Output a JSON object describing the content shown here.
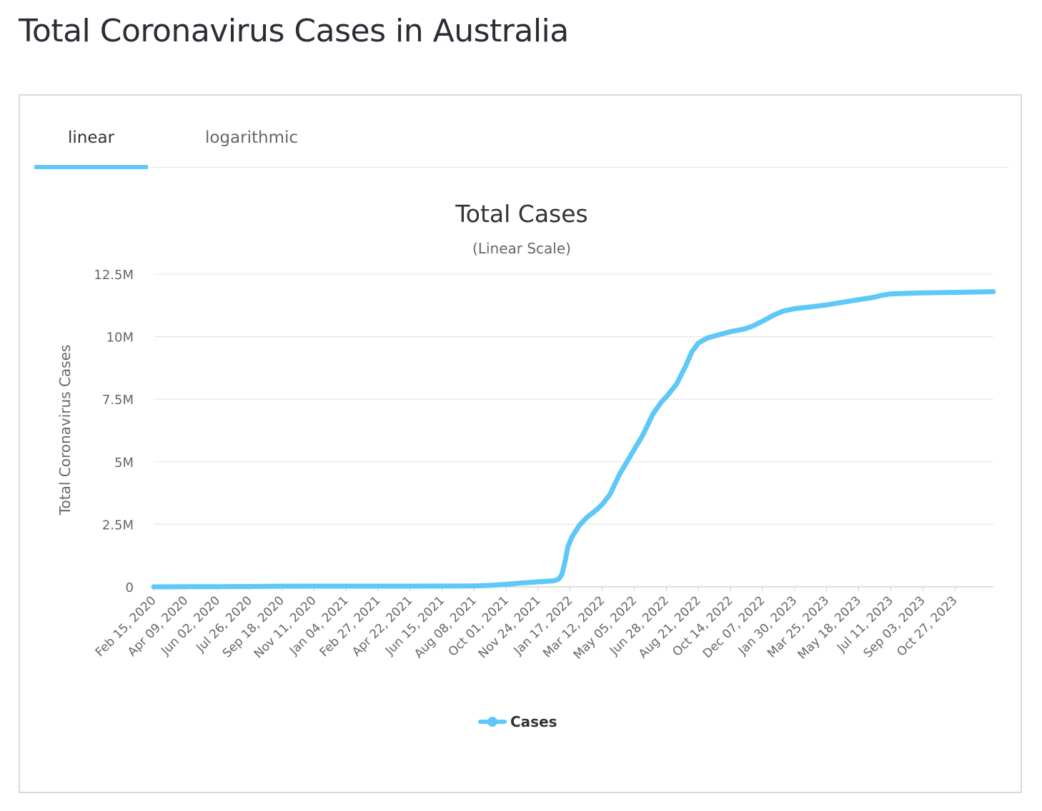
{
  "page": {
    "title": "Total Coronavirus Cases in Australia"
  },
  "tabs": [
    {
      "label": "linear",
      "active": true
    },
    {
      "label": "logarithmic",
      "active": false
    }
  ],
  "colors": {
    "series": "#5ec8f8",
    "grid": "#e6e6e6",
    "text": "#333333",
    "muted": "#666666"
  },
  "chart_data": {
    "type": "line",
    "title": "Total Cases",
    "subtitle": "(Linear Scale)",
    "xlabel": "",
    "ylabel": "Total Coronavirus Cases",
    "x_range": [
      "2020-02-15",
      "2023-12-31"
    ],
    "ylim": [
      0,
      12500000
    ],
    "y_ticks": [
      {
        "value": 0,
        "label": "0"
      },
      {
        "value": 2500000,
        "label": "2.5M"
      },
      {
        "value": 5000000,
        "label": "5M"
      },
      {
        "value": 7500000,
        "label": "7.5M"
      },
      {
        "value": 10000000,
        "label": "10M"
      },
      {
        "value": 12500000,
        "label": "12.5M"
      }
    ],
    "x_ticks": [
      {
        "date": "2020-02-15",
        "label": "Feb 15, 2020"
      },
      {
        "date": "2020-04-09",
        "label": "Apr 09, 2020"
      },
      {
        "date": "2020-06-02",
        "label": "Jun 02, 2020"
      },
      {
        "date": "2020-07-26",
        "label": "Jul 26, 2020"
      },
      {
        "date": "2020-09-18",
        "label": "Sep 18, 2020"
      },
      {
        "date": "2020-11-11",
        "label": "Nov 11, 2020"
      },
      {
        "date": "2021-01-04",
        "label": "Jan 04, 2021"
      },
      {
        "date": "2021-02-27",
        "label": "Feb 27, 2021"
      },
      {
        "date": "2021-04-22",
        "label": "Apr 22, 2021"
      },
      {
        "date": "2021-06-15",
        "label": "Jun 15, 2021"
      },
      {
        "date": "2021-08-08",
        "label": "Aug 08, 2021"
      },
      {
        "date": "2021-10-01",
        "label": "Oct 01, 2021"
      },
      {
        "date": "2021-11-24",
        "label": "Nov 24, 2021"
      },
      {
        "date": "2022-01-17",
        "label": "Jan 17, 2022"
      },
      {
        "date": "2022-03-12",
        "label": "Mar 12, 2022"
      },
      {
        "date": "2022-05-05",
        "label": "May 05, 2022"
      },
      {
        "date": "2022-06-28",
        "label": "Jun 28, 2022"
      },
      {
        "date": "2022-08-21",
        "label": "Aug 21, 2022"
      },
      {
        "date": "2022-10-14",
        "label": "Oct 14, 2022"
      },
      {
        "date": "2022-12-07",
        "label": "Dec 07, 2022"
      },
      {
        "date": "2023-01-30",
        "label": "Jan 30, 2023"
      },
      {
        "date": "2023-03-25",
        "label": "Mar 25, 2023"
      },
      {
        "date": "2023-05-18",
        "label": "May 18, 2023"
      },
      {
        "date": "2023-07-11",
        "label": "Jul 11, 2023"
      },
      {
        "date": "2023-09-03",
        "label": "Sep 03, 2023"
      },
      {
        "date": "2023-10-27",
        "label": "Oct 27, 2023"
      }
    ],
    "grid": true,
    "legend": {
      "position": "bottom-center"
    },
    "series": [
      {
        "name": "Cases",
        "color": "#5ec8f8",
        "points": [
          [
            "2020-02-15",
            15
          ],
          [
            "2020-04-09",
            6000
          ],
          [
            "2020-06-02",
            7200
          ],
          [
            "2020-07-26",
            15000
          ],
          [
            "2020-09-18",
            26800
          ],
          [
            "2020-11-11",
            27700
          ],
          [
            "2021-01-04",
            28500
          ],
          [
            "2021-02-27",
            28900
          ],
          [
            "2021-04-22",
            29500
          ],
          [
            "2021-06-15",
            30200
          ],
          [
            "2021-07-15",
            32000
          ],
          [
            "2021-08-08",
            38000
          ],
          [
            "2021-09-01",
            55000
          ],
          [
            "2021-10-01",
            100000
          ],
          [
            "2021-10-25",
            150000
          ],
          [
            "2021-11-24",
            200000
          ],
          [
            "2021-12-20",
            240000
          ],
          [
            "2021-12-28",
            300000
          ],
          [
            "2022-01-03",
            500000
          ],
          [
            "2022-01-08",
            1000000
          ],
          [
            "2022-01-13",
            1600000
          ],
          [
            "2022-01-20",
            2000000
          ],
          [
            "2022-02-01",
            2450000
          ],
          [
            "2022-02-15",
            2800000
          ],
          [
            "2022-03-01",
            3050000
          ],
          [
            "2022-03-12",
            3300000
          ],
          [
            "2022-03-25",
            3700000
          ],
          [
            "2022-04-10",
            4500000
          ],
          [
            "2022-04-25",
            5100000
          ],
          [
            "2022-05-05",
            5500000
          ],
          [
            "2022-05-20",
            6100000
          ],
          [
            "2022-06-05",
            6900000
          ],
          [
            "2022-06-20",
            7400000
          ],
          [
            "2022-06-28",
            7600000
          ],
          [
            "2022-07-15",
            8100000
          ],
          [
            "2022-07-30",
            8800000
          ],
          [
            "2022-08-10",
            9400000
          ],
          [
            "2022-08-21",
            9750000
          ],
          [
            "2022-09-05",
            9950000
          ],
          [
            "2022-09-25",
            10080000
          ],
          [
            "2022-10-14",
            10200000
          ],
          [
            "2022-11-05",
            10300000
          ],
          [
            "2022-11-20",
            10420000
          ],
          [
            "2022-12-07",
            10620000
          ],
          [
            "2022-12-25",
            10850000
          ],
          [
            "2023-01-10",
            11020000
          ],
          [
            "2023-01-30",
            11120000
          ],
          [
            "2023-03-01",
            11200000
          ],
          [
            "2023-03-25",
            11270000
          ],
          [
            "2023-04-20",
            11370000
          ],
          [
            "2023-05-18",
            11480000
          ],
          [
            "2023-06-10",
            11560000
          ],
          [
            "2023-06-25",
            11650000
          ],
          [
            "2023-07-11",
            11710000
          ],
          [
            "2023-08-10",
            11735000
          ],
          [
            "2023-09-03",
            11750000
          ],
          [
            "2023-10-27",
            11770000
          ],
          [
            "2023-12-31",
            11800000
          ]
        ]
      }
    ]
  }
}
